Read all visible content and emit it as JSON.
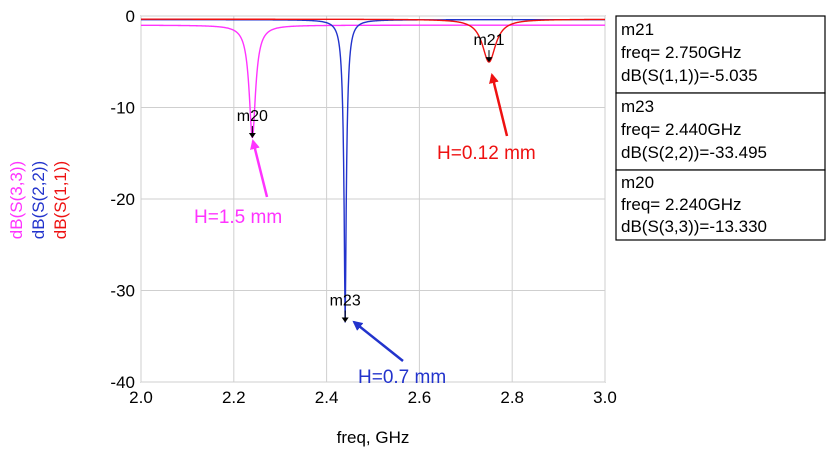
{
  "chart_data": {
    "type": "line",
    "title": "",
    "xlabel": "freq, GHz",
    "xlim": [
      2.0,
      3.0
    ],
    "ylim": [
      -40,
      0
    ],
    "x_ticks": [
      "2.0",
      "2.2",
      "2.4",
      "2.6",
      "2.8",
      "3.0"
    ],
    "y_ticks": [
      "0",
      "-10",
      "-20",
      "-30",
      "-40"
    ],
    "ylabels": [
      {
        "text": "dB(S(3,3))",
        "color": "#ff33ff"
      },
      {
        "text": "dB(S(2,2))",
        "color": "#2233cc"
      },
      {
        "text": "dB(S(1,1))",
        "color": "#ee1111"
      }
    ],
    "grid": true,
    "series": [
      {
        "name": "dB(S(3,3))",
        "color": "#ff33ff",
        "baseline": -1.0,
        "f0": 2.24,
        "depth": -13.33,
        "gamma": 0.012
      },
      {
        "name": "dB(S(2,2))",
        "color": "#2233cc",
        "baseline": -0.4,
        "f0": 2.44,
        "depth": -33.495,
        "gamma": 0.008
      },
      {
        "name": "dB(S(1,1))",
        "color": "#ee1111",
        "baseline": -0.35,
        "f0": 2.75,
        "depth": -5.035,
        "gamma": 0.02
      }
    ],
    "markers": [
      {
        "label": "m20",
        "x": 2.24,
        "y": -13.33
      },
      {
        "label": "m23",
        "x": 2.44,
        "y": -33.495
      },
      {
        "label": "m21",
        "x": 2.75,
        "y": -5.035
      }
    ],
    "annotations": [
      {
        "text": "H=1.5 mm",
        "color": "#ff33ff"
      },
      {
        "text": "H=0.7 mm",
        "color": "#2233cc"
      },
      {
        "text": "H=0.12 mm",
        "color": "#ee1111"
      }
    ],
    "marker_table": [
      {
        "name": "m21",
        "freq": "freq= 2.750GHz",
        "value": "dB(S(1,1))=-5.035"
      },
      {
        "name": "m23",
        "freq": "freq= 2.440GHz",
        "value": "dB(S(2,2))=-33.495"
      },
      {
        "name": "m20",
        "freq": "freq= 2.240GHz",
        "value": "dB(S(3,3))=-13.330"
      }
    ]
  }
}
